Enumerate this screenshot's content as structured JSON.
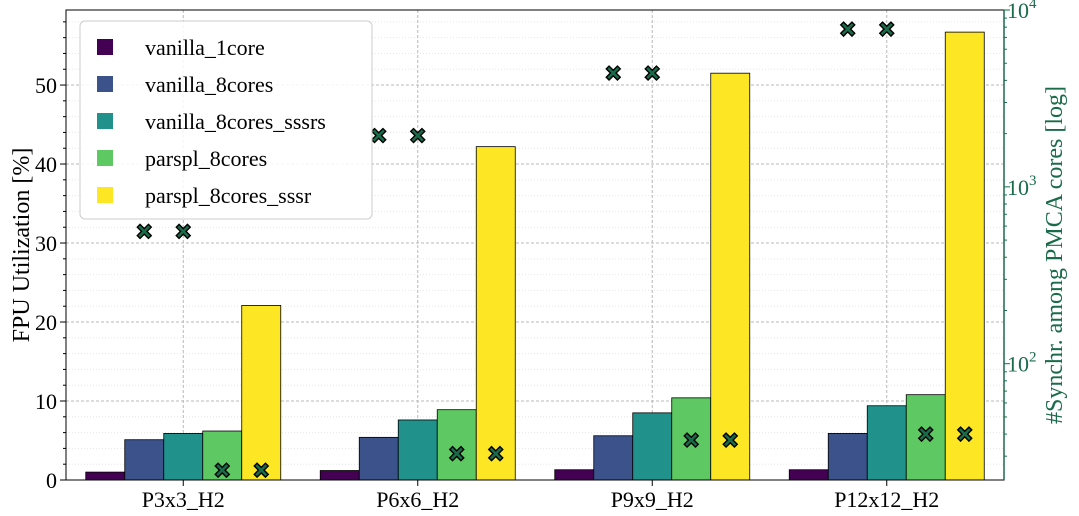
{
  "chart_data": {
    "type": "bar",
    "categories": [
      "P3x3_H2",
      "P6x6_H2",
      "P9x9_H2",
      "P12x12_H2"
    ],
    "series": [
      {
        "name": "vanilla_1core",
        "color": "#440154",
        "values": [
          1.0,
          1.2,
          1.3,
          1.3
        ]
      },
      {
        "name": "vanilla_8cores",
        "color": "#3b528b",
        "values": [
          5.1,
          5.4,
          5.6,
          5.9
        ]
      },
      {
        "name": "vanilla_8cores_sssrs",
        "color": "#21918c",
        "values": [
          5.9,
          7.6,
          8.5,
          9.4
        ]
      },
      {
        "name": "parspl_8cores",
        "color": "#5ec962",
        "values": [
          6.2,
          8.9,
          10.4,
          10.8
        ]
      },
      {
        "name": "parspl_8cores_sssr",
        "color": "#fde725",
        "values": [
          22.1,
          42.2,
          51.5,
          56.7
        ]
      }
    ],
    "markers": {
      "color": "#1a6b4a",
      "points": [
        {
          "category": "P3x3_H2",
          "series": "vanilla_8cores",
          "value": 560
        },
        {
          "category": "P3x3_H2",
          "series": "vanilla_8cores_sssrs",
          "value": 560
        },
        {
          "category": "P3x3_H2",
          "series": "parspl_8cores",
          "value": 25
        },
        {
          "category": "P3x3_H2",
          "series": "parspl_8cores_sssr",
          "value": 25
        },
        {
          "category": "P6x6_H2",
          "series": "vanilla_8cores",
          "value": 1950
        },
        {
          "category": "P6x6_H2",
          "series": "vanilla_8cores_sssrs",
          "value": 1950
        },
        {
          "category": "P6x6_H2",
          "series": "parspl_8cores",
          "value": 31
        },
        {
          "category": "P6x6_H2",
          "series": "parspl_8cores_sssr",
          "value": 31
        },
        {
          "category": "P9x9_H2",
          "series": "vanilla_8cores",
          "value": 4400
        },
        {
          "category": "P9x9_H2",
          "series": "vanilla_8cores_sssrs",
          "value": 4400
        },
        {
          "category": "P9x9_H2",
          "series": "parspl_8cores",
          "value": 37
        },
        {
          "category": "P9x9_H2",
          "series": "parspl_8cores_sssr",
          "value": 37
        },
        {
          "category": "P12x12_H2",
          "series": "vanilla_8cores",
          "value": 7800
        },
        {
          "category": "P12x12_H2",
          "series": "vanilla_8cores_sssrs",
          "value": 7800
        },
        {
          "category": "P12x12_H2",
          "series": "parspl_8cores",
          "value": 40
        },
        {
          "category": "P12x12_H2",
          "series": "parspl_8cores_sssr",
          "value": 40
        }
      ]
    },
    "ylabel": "FPU Utilization [%]",
    "ylim": [
      0,
      59.5
    ],
    "yticks": [
      0,
      10,
      20,
      30,
      40,
      50
    ],
    "y2label": "#Synchr. among PMCA cores [log]",
    "y2scale": "log",
    "y2lim": [
      22,
      10000
    ],
    "y2ticks": [
      {
        "value": 100,
        "base": "10",
        "exp": "2"
      },
      {
        "value": 1000,
        "base": "10",
        "exp": "3"
      },
      {
        "value": 10000,
        "base": "10",
        "exp": "4"
      }
    ],
    "y2color": "#1a6b4a",
    "grid": true,
    "legend": "top-left"
  }
}
